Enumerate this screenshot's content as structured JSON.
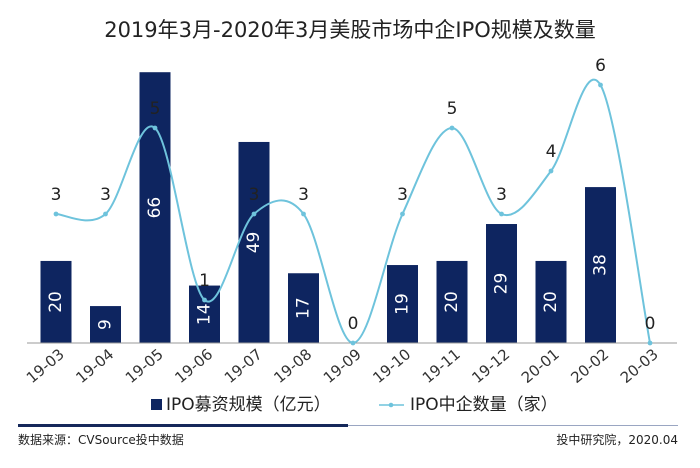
{
  "chart_data": {
    "type": "bar+line",
    "title": "2019年3月-2020年3月美股市场中企IPO规模及数量",
    "categories": [
      "19-03",
      "19-04",
      "19-05",
      "19-06",
      "19-07",
      "19-08",
      "19-09",
      "19-10",
      "19-11",
      "19-12",
      "20-01",
      "20-02",
      "20-03"
    ],
    "series": [
      {
        "name": "IPO募资规模（亿元）",
        "type": "bar",
        "color": "#0e2560",
        "values": [
          20,
          9,
          66,
          14,
          49,
          17,
          0,
          19,
          20,
          29,
          20,
          38,
          0
        ]
      },
      {
        "name": "IPO中企数量（家）",
        "type": "line",
        "color": "#6ec3dc",
        "values": [
          3,
          3,
          5,
          1,
          3,
          3,
          0,
          3,
          5,
          3,
          4,
          6,
          0
        ]
      }
    ],
    "bar_ylim": [
      0,
      68
    ],
    "line_ylim": [
      0,
      6.3
    ]
  },
  "footer": {
    "source": "数据来源：CVSource投中数据",
    "credit": "投中研究院，2020.04"
  }
}
